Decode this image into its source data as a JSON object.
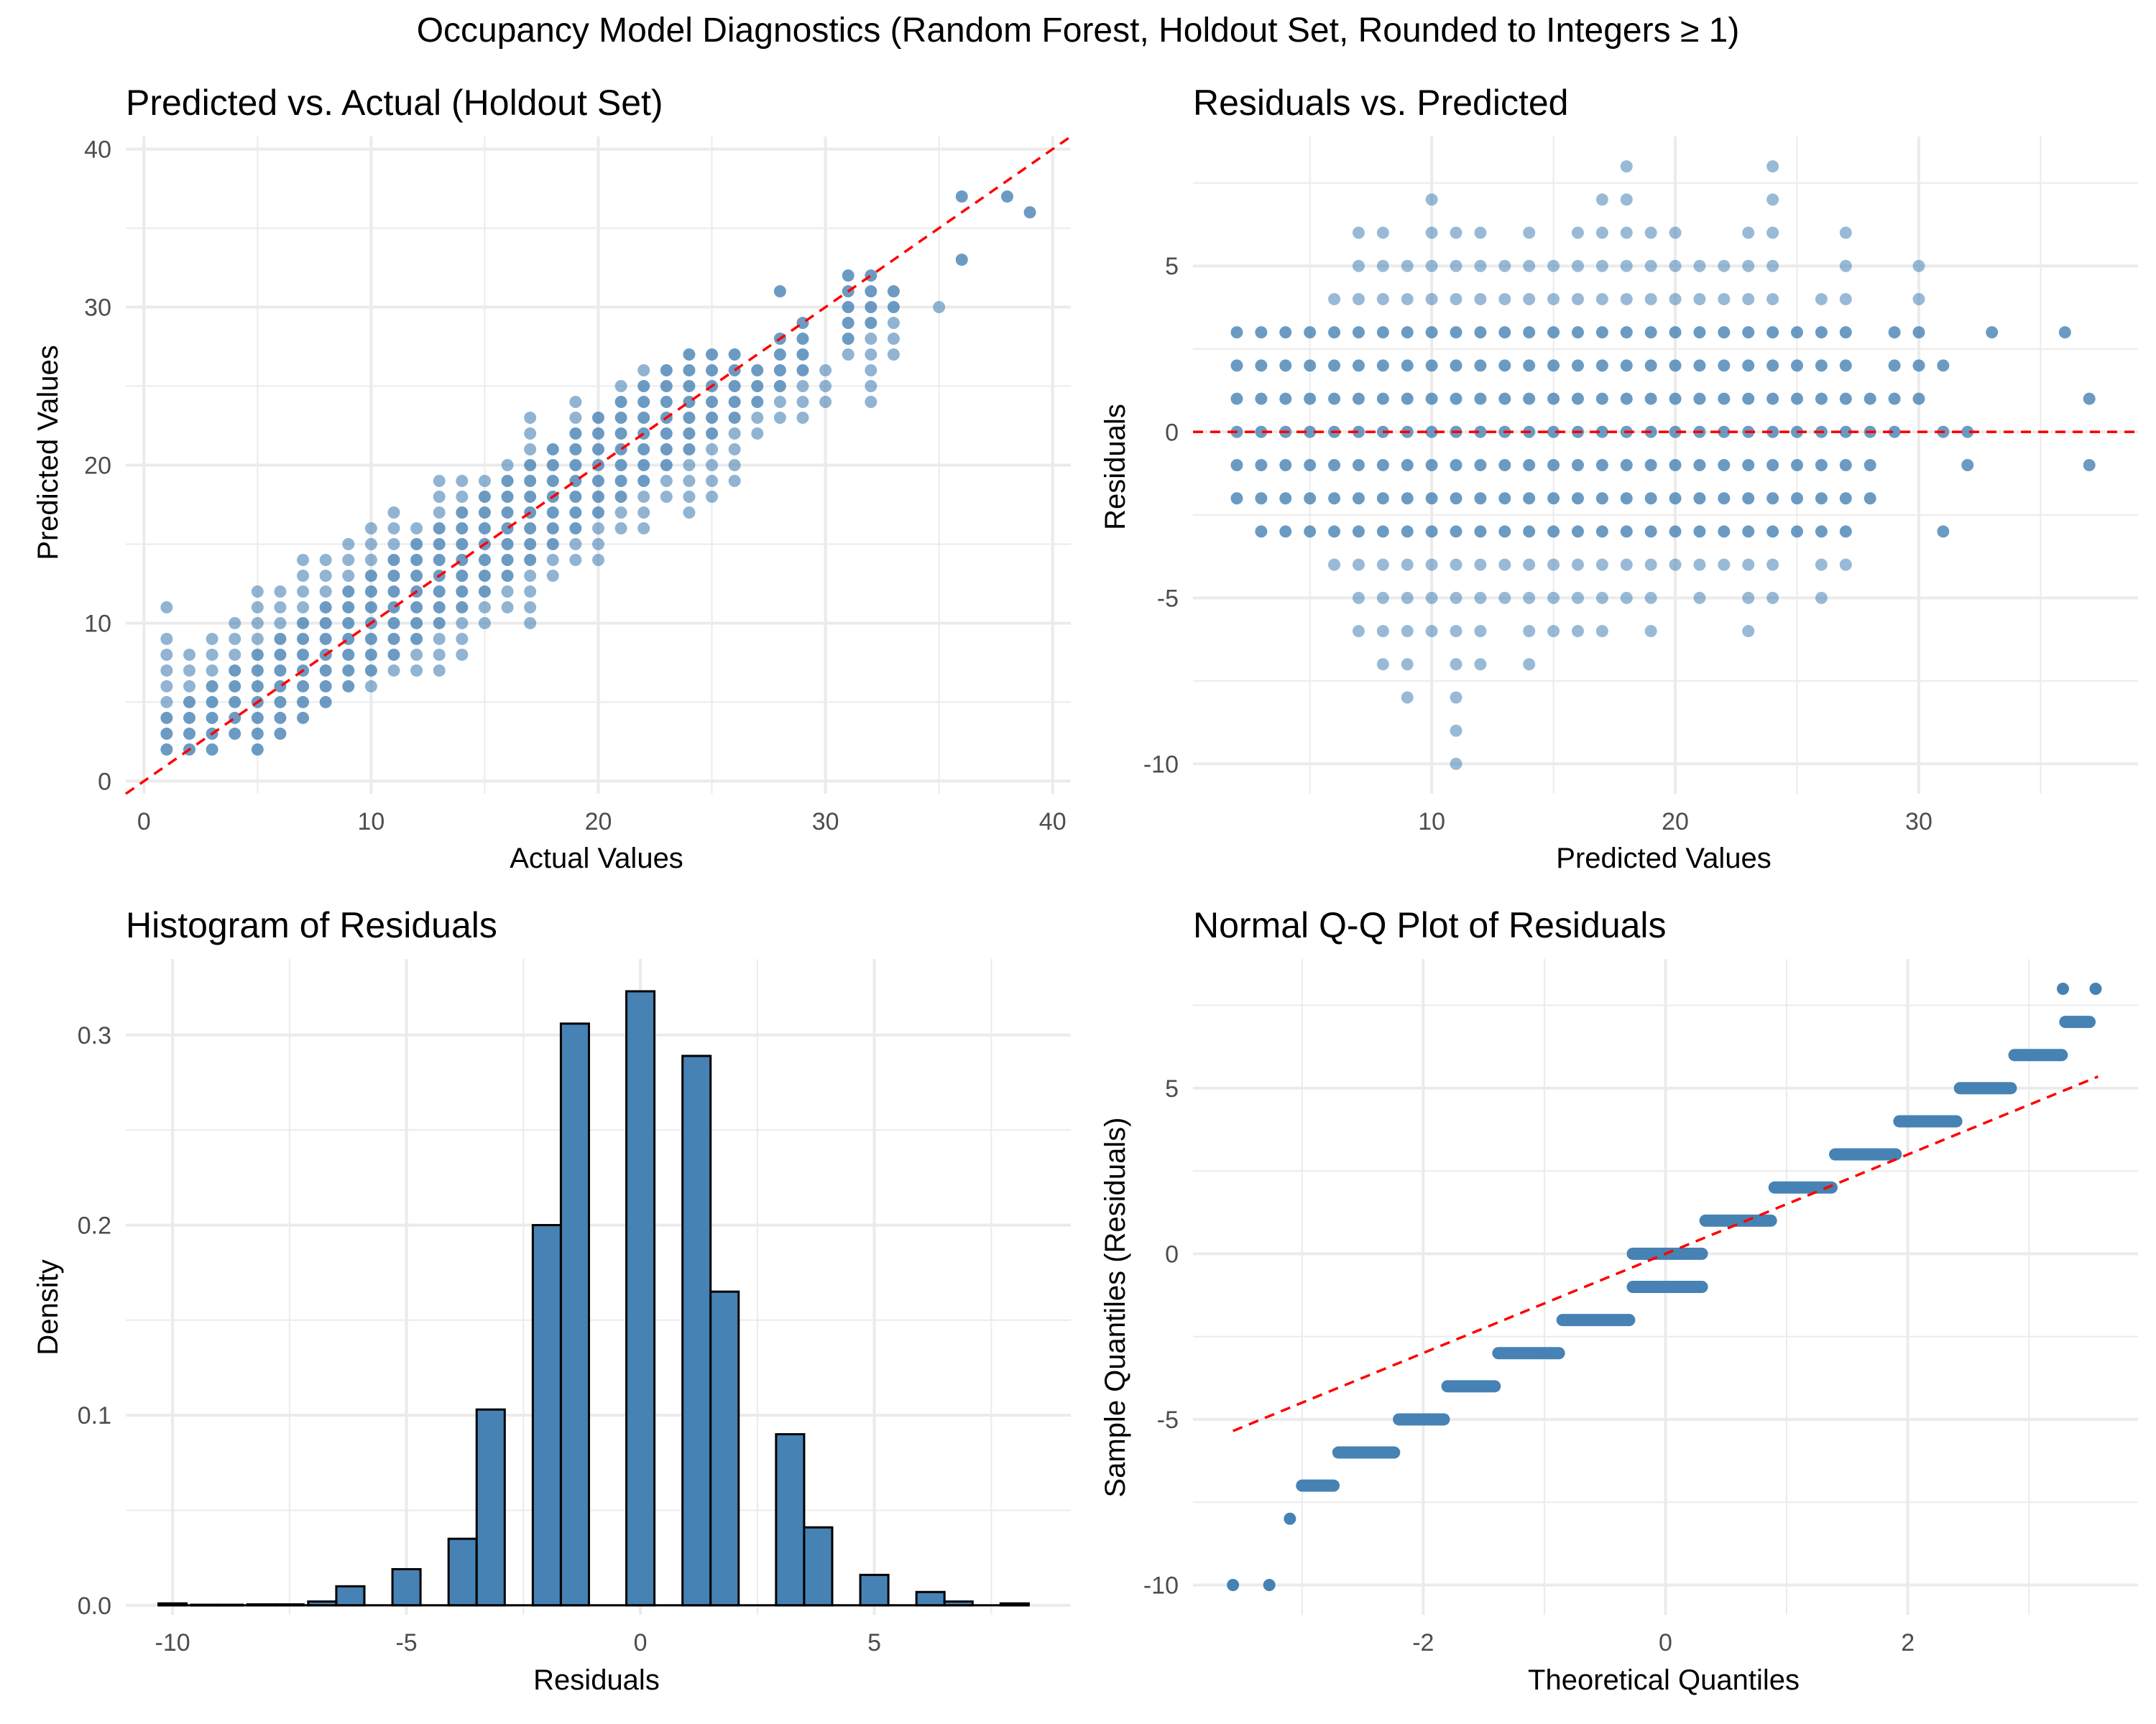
{
  "figure": {
    "title": "Occupancy Model Diagnostics (Random Forest, Holdout Set, Rounded to Integers ≥ 1)"
  },
  "colors": {
    "points": "#4682b4",
    "bars": "#4682b4",
    "reference_line": "#ff0000",
    "grid": "#ebebeb",
    "text": "#000000",
    "tick_text": "#4d4d4d"
  },
  "chart_data": [
    {
      "id": "pred_vs_actual",
      "type": "scatter",
      "title": "Predicted vs. Actual (Holdout Set)",
      "xlabel": "Actual Values",
      "ylabel": "Predicted Values",
      "xlim": [
        -0.8,
        40.8
      ],
      "ylim": [
        -0.8,
        40.8
      ],
      "xticks": [
        0,
        10,
        20,
        30,
        40
      ],
      "yticks": [
        0,
        10,
        20,
        30,
        40
      ],
      "grid": true,
      "reference_line": {
        "type": "identity",
        "color": "#ff0000",
        "style": "dashed"
      },
      "columns": [
        {
          "x": 1,
          "y_min": 2,
          "y_max": 9,
          "extra": [
            11
          ]
        },
        {
          "x": 2,
          "y_min": 2,
          "y_max": 8
        },
        {
          "x": 3,
          "y_min": 2,
          "y_max": 9
        },
        {
          "x": 4,
          "y_min": 3,
          "y_max": 10
        },
        {
          "x": 5,
          "y_min": 2,
          "y_max": 12
        },
        {
          "x": 6,
          "y_min": 3,
          "y_max": 12
        },
        {
          "x": 7,
          "y_min": 4,
          "y_max": 14
        },
        {
          "x": 8,
          "y_min": 5,
          "y_max": 14
        },
        {
          "x": 9,
          "y_min": 6,
          "y_max": 15
        },
        {
          "x": 10,
          "y_min": 6,
          "y_max": 16
        },
        {
          "x": 11,
          "y_min": 7,
          "y_max": 17
        },
        {
          "x": 12,
          "y_min": 7,
          "y_max": 16
        },
        {
          "x": 13,
          "y_min": 7,
          "y_max": 19
        },
        {
          "x": 14,
          "y_min": 8,
          "y_max": 19
        },
        {
          "x": 15,
          "y_min": 10,
          "y_max": 19
        },
        {
          "x": 16,
          "y_min": 11,
          "y_max": 20
        },
        {
          "x": 17,
          "y_min": 10,
          "y_max": 23
        },
        {
          "x": 18,
          "y_min": 13,
          "y_max": 21
        },
        {
          "x": 19,
          "y_min": 14,
          "y_max": 24
        },
        {
          "x": 20,
          "y_min": 14,
          "y_max": 23
        },
        {
          "x": 21,
          "y_min": 16,
          "y_max": 25
        },
        {
          "x": 22,
          "y_min": 16,
          "y_max": 26
        },
        {
          "x": 23,
          "y_min": 18,
          "y_max": 26
        },
        {
          "x": 24,
          "y_min": 17,
          "y_max": 27
        },
        {
          "x": 25,
          "y_min": 18,
          "y_max": 27
        },
        {
          "x": 26,
          "y_min": 19,
          "y_max": 27
        },
        {
          "x": 27,
          "y_min": 22,
          "y_max": 26
        },
        {
          "x": 28,
          "y_min": 23,
          "y_max": 28,
          "extra": [
            31
          ]
        },
        {
          "x": 29,
          "y_min": 23,
          "y_max": 29
        },
        {
          "x": 30,
          "y_min": 24,
          "y_max": 26
        },
        {
          "x": 31,
          "y_min": 27,
          "y_max": 32
        },
        {
          "x": 32,
          "y_min": 24,
          "y_max": 32
        },
        {
          "x": 33,
          "y_min": 27,
          "y_max": 31
        },
        {
          "x": 35,
          "y_min": 30,
          "y_max": 30
        },
        {
          "x": 36,
          "y_min": 33,
          "y_max": 37,
          "only": [
            33,
            37
          ]
        },
        {
          "x": 38,
          "y_min": 37,
          "y_max": 37
        },
        {
          "x": 39,
          "y_min": 36,
          "y_max": 36
        }
      ]
    },
    {
      "id": "resid_vs_pred",
      "type": "scatter",
      "title": "Residuals vs. Predicted",
      "xlabel": "Predicted Values",
      "ylabel": "Residuals",
      "xlim": [
        0.2,
        39.0
      ],
      "ylim": [
        -10.9,
        8.9
      ],
      "xticks": [
        10,
        20,
        30
      ],
      "yticks": [
        -10,
        -5,
        0,
        5
      ],
      "grid": true,
      "reference_line": {
        "type": "hline",
        "y": 0,
        "color": "#ff0000",
        "style": "dashed"
      },
      "columns": [
        {
          "x": 2,
          "r_min": -2,
          "r_max": 3
        },
        {
          "x": 3,
          "r_min": -3,
          "r_max": 3
        },
        {
          "x": 4,
          "r_min": -3,
          "r_max": 3
        },
        {
          "x": 5,
          "r_min": -3,
          "r_max": 3
        },
        {
          "x": 6,
          "r_min": -4,
          "r_max": 4
        },
        {
          "x": 7,
          "r_min": -6,
          "r_max": 6
        },
        {
          "x": 8,
          "r_min": -7,
          "r_max": 6
        },
        {
          "x": 9,
          "r_min": -8,
          "r_max": 5
        },
        {
          "x": 10,
          "r_min": -6,
          "r_max": 7
        },
        {
          "x": 11,
          "r_min": -10,
          "r_max": 6
        },
        {
          "x": 12,
          "r_min": -7,
          "r_max": 6
        },
        {
          "x": 13,
          "r_min": -5,
          "r_max": 5
        },
        {
          "x": 14,
          "r_min": -7,
          "r_max": 6
        },
        {
          "x": 15,
          "r_min": -6,
          "r_max": 5
        },
        {
          "x": 16,
          "r_min": -6,
          "r_max": 6
        },
        {
          "x": 17,
          "r_min": -6,
          "r_max": 7
        },
        {
          "x": 18,
          "r_min": -5,
          "r_max": 8
        },
        {
          "x": 19,
          "r_min": -6,
          "r_max": 6
        },
        {
          "x": 20,
          "r_min": -4,
          "r_max": 6
        },
        {
          "x": 21,
          "r_min": -5,
          "r_max": 5
        },
        {
          "x": 22,
          "r_min": -4,
          "r_max": 5
        },
        {
          "x": 23,
          "r_min": -6,
          "r_max": 6
        },
        {
          "x": 24,
          "r_min": -5,
          "r_max": 8
        },
        {
          "x": 25,
          "r_min": -3,
          "r_max": 3
        },
        {
          "x": 26,
          "r_min": -5,
          "r_max": 4
        },
        {
          "x": 27,
          "r_min": -4,
          "r_max": 6
        },
        {
          "x": 28,
          "r_min": -2,
          "r_max": 1
        },
        {
          "x": 29,
          "r_min": 0,
          "r_max": 3
        },
        {
          "x": 30,
          "r_min": 1,
          "r_max": 5
        },
        {
          "x": 31,
          "r_min": -3,
          "r_max": 2,
          "only": [
            -3,
            0,
            2
          ]
        },
        {
          "x": 32,
          "r_min": -1,
          "r_max": 0,
          "only": [
            -1,
            0
          ]
        },
        {
          "x": 33,
          "r_min": 3,
          "r_max": 3
        },
        {
          "x": 36,
          "r_min": 3,
          "r_max": 3
        },
        {
          "x": 37,
          "r_min": -1,
          "r_max": 1,
          "only": [
            -1,
            1
          ]
        }
      ]
    },
    {
      "id": "resid_hist",
      "type": "bar",
      "title": "Histogram of Residuals",
      "xlabel": "Residuals",
      "ylabel": "Density",
      "xlim": [
        -11.0,
        9.2
      ],
      "ylim": [
        -0.005,
        0.34
      ],
      "xticks": [
        -10,
        -5,
        0,
        5
      ],
      "yticks": [
        0.0,
        0.1,
        0.2,
        0.3
      ],
      "ytick_labels": [
        "0.0",
        "0.1",
        "0.2",
        "0.3"
      ],
      "grid": true,
      "bin_width": 0.6,
      "bin_centers": [
        -10.0,
        -9.3,
        -8.8,
        -8.1,
        -7.5,
        -6.8,
        -6.2,
        -5.0,
        -3.8,
        -3.2,
        -2.0,
        -1.4,
        0.0,
        1.2,
        1.8,
        3.2,
        3.8,
        5.0,
        6.2,
        6.8,
        8.0
      ],
      "values": [
        0.001,
        0.0003,
        0.0003,
        0.0005,
        0.0005,
        0.002,
        0.01,
        0.019,
        0.035,
        0.103,
        0.2,
        0.306,
        0.323,
        0.289,
        0.165,
        0.09,
        0.041,
        0.016,
        0.007,
        0.002,
        0.001
      ]
    },
    {
      "id": "qq_plot",
      "type": "scatter",
      "title": "Normal Q-Q Plot of Residuals",
      "xlabel": "Theoretical Quantiles",
      "ylabel": "Sample Quantiles (Residuals)",
      "xlim": [
        -3.9,
        3.9
      ],
      "ylim": [
        -10.9,
        8.9
      ],
      "xticks": [
        -2,
        0,
        2
      ],
      "yticks": [
        -10,
        -5,
        0,
        5
      ],
      "grid": true,
      "reference_line": {
        "from": [
          -3.57,
          -5.35
        ],
        "to": [
          3.57,
          5.35
        ],
        "color": "#ff0000",
        "style": "dashed"
      },
      "steps": [
        {
          "y": -10,
          "x_start": -3.57,
          "x_end": -3.57
        },
        {
          "y": -10,
          "x_start": -3.27,
          "x_end": -3.27
        },
        {
          "y": -8,
          "x_start": -3.1,
          "x_end": -3.1
        },
        {
          "y": -7,
          "x_start": -3.0,
          "x_end": -2.74
        },
        {
          "y": -6,
          "x_start": -2.7,
          "x_end": -2.24
        },
        {
          "y": -5,
          "x_start": -2.2,
          "x_end": -1.83
        },
        {
          "y": -4,
          "x_start": -1.8,
          "x_end": -1.41
        },
        {
          "y": -3,
          "x_start": -1.38,
          "x_end": -0.88
        },
        {
          "y": -2,
          "x_start": -0.85,
          "x_end": -0.3
        },
        {
          "y": -1,
          "x_start": -0.27,
          "x_end": 0.3
        },
        {
          "y": 0,
          "x_start": -0.27,
          "x_end": 0.3
        },
        {
          "y": 1,
          "x_start": 0.33,
          "x_end": 0.87
        },
        {
          "y": 2,
          "x_start": 0.9,
          "x_end": 1.37
        },
        {
          "y": 3,
          "x_start": 1.4,
          "x_end": 1.9
        },
        {
          "y": 4,
          "x_start": 1.93,
          "x_end": 2.4
        },
        {
          "y": 5,
          "x_start": 2.43,
          "x_end": 2.85
        },
        {
          "y": 6,
          "x_start": 2.88,
          "x_end": 3.27
        },
        {
          "y": 7,
          "x_start": 3.3,
          "x_end": 3.5
        },
        {
          "y": 8,
          "x_start": 3.28,
          "x_end": 3.28
        },
        {
          "y": 8,
          "x_start": 3.55,
          "x_end": 3.55
        }
      ]
    }
  ]
}
